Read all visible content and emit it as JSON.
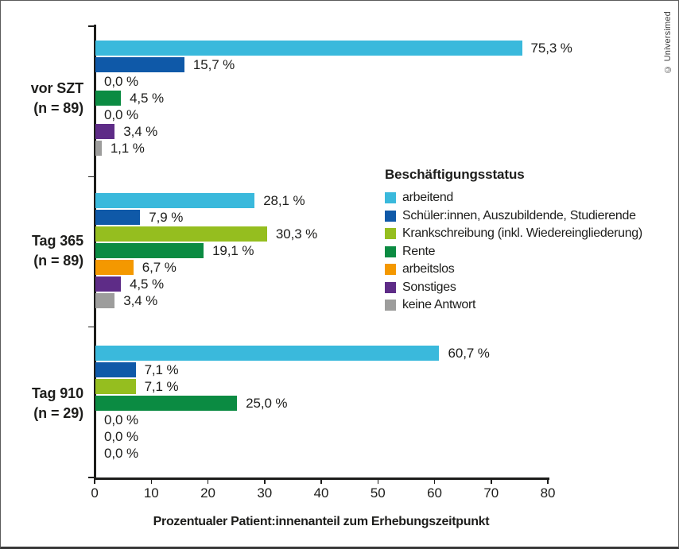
{
  "figure": {
    "copyright": "© Universimed"
  },
  "chart_data": {
    "type": "bar",
    "orientation": "horizontal",
    "title": "",
    "xlabel": "Prozentualer Patient:innenanteil zum Erhebungszeitpunkt",
    "ylabel": "",
    "xlim": [
      0,
      80
    ],
    "xticks": [
      "0",
      "10",
      "20",
      "30",
      "40",
      "50",
      "60",
      "70",
      "80"
    ],
    "grid": false,
    "legend": {
      "title": "Beschäftigungsstatus",
      "position": "right-middle",
      "items": [
        {
          "label": "arbeitend",
          "color": "#3ab9dc"
        },
        {
          "label": "Schüler:innen, Auszubildende, Studierende",
          "color": "#0f59a8"
        },
        {
          "label": "Krankschreibung (inkl. Wiedereingliederung)",
          "color": "#95be1f"
        },
        {
          "label": "Rente",
          "color": "#0b8b42"
        },
        {
          "label": "arbeitslos",
          "color": "#f49800"
        },
        {
          "label": "Sonstiges",
          "color": "#5e2c87"
        },
        {
          "label": "keine Antwort",
          "color": "#9d9d9c"
        }
      ]
    },
    "groups": [
      {
        "label": "vor SZT",
        "sublabel": "(n = 89)",
        "values": [
          75.3,
          15.7,
          0.0,
          4.5,
          0.0,
          3.4,
          1.1
        ],
        "value_labels": [
          "75,3 %",
          "15,7 %",
          "0,0 %",
          "4,5 %",
          "0,0 %",
          "3,4 %",
          "1,1 %"
        ]
      },
      {
        "label": "Tag 365",
        "sublabel": "(n = 89)",
        "values": [
          28.1,
          7.9,
          30.3,
          19.1,
          6.7,
          4.5,
          3.4
        ],
        "value_labels": [
          "28,1 %",
          "7,9 %",
          "30,3 %",
          "19,1 %",
          "6,7 %",
          "4,5 %",
          "3,4 %"
        ]
      },
      {
        "label": "Tag 910",
        "sublabel": "(n = 29)",
        "values": [
          60.7,
          7.1,
          7.1,
          25.0,
          0.0,
          0.0,
          0.0
        ],
        "value_labels": [
          "60,7 %",
          "7,1 %",
          "7,1 %",
          "25,0 %",
          "0,0 %",
          "0,0 %",
          "0,0 %"
        ]
      }
    ]
  }
}
